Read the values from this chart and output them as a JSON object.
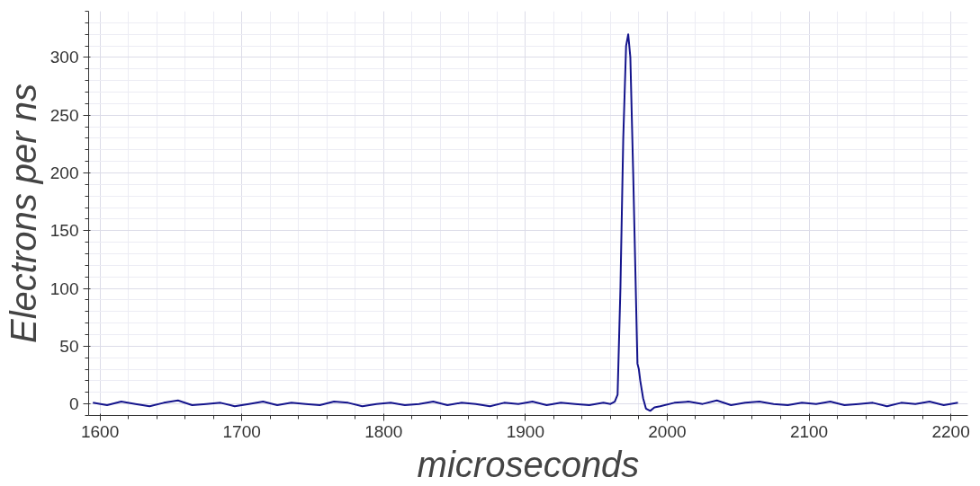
{
  "chart_data": {
    "type": "line",
    "xlabel": "microseconds",
    "ylabel": "Electrons per ns",
    "xlim": [
      1592,
      2212
    ],
    "ylim": [
      -10,
      340
    ],
    "xticks": [
      1600,
      1700,
      1800,
      1900,
      2000,
      2100,
      2200
    ],
    "yticks": [
      0,
      50,
      100,
      150,
      200,
      250,
      300
    ],
    "grid": true,
    "marker": "none",
    "line_style": "solid",
    "series": [
      {
        "color": "#14148c",
        "x": [
          1595,
          1605,
          1615,
          1625,
          1635,
          1645,
          1655,
          1665,
          1675,
          1685,
          1695,
          1705,
          1715,
          1725,
          1735,
          1745,
          1755,
          1765,
          1775,
          1785,
          1795,
          1805,
          1815,
          1825,
          1835,
          1845,
          1855,
          1865,
          1875,
          1885,
          1895,
          1905,
          1915,
          1925,
          1935,
          1945,
          1955,
          1960,
          1963,
          1965,
          1967,
          1969,
          1971,
          1972.5,
          1974,
          1976,
          1978,
          1979,
          1980,
          1981,
          1983,
          1985,
          1988,
          1991,
          1995,
          2005,
          2015,
          2025,
          2035,
          2045,
          2055,
          2065,
          2075,
          2085,
          2095,
          2105,
          2115,
          2125,
          2135,
          2145,
          2155,
          2165,
          2175,
          2185,
          2195,
          2205
        ],
        "values": [
          1,
          -1,
          2,
          0,
          -2,
          1,
          3,
          -1,
          0,
          1,
          -2,
          0,
          2,
          -1,
          1,
          0,
          -1,
          2,
          1,
          -2,
          0,
          1,
          -1,
          0,
          2,
          -1,
          1,
          0,
          -2,
          1,
          0,
          2,
          -1,
          1,
          0,
          -1,
          1,
          0,
          2,
          8,
          100,
          230,
          310,
          320,
          300,
          200,
          90,
          35,
          30,
          20,
          5,
          -4,
          -6,
          -3,
          -2,
          1,
          2,
          0,
          3,
          -1,
          1,
          2,
          0,
          -1,
          1,
          0,
          2,
          -1,
          0,
          1,
          -2,
          1,
          0,
          2,
          -1,
          1
        ]
      }
    ]
  }
}
